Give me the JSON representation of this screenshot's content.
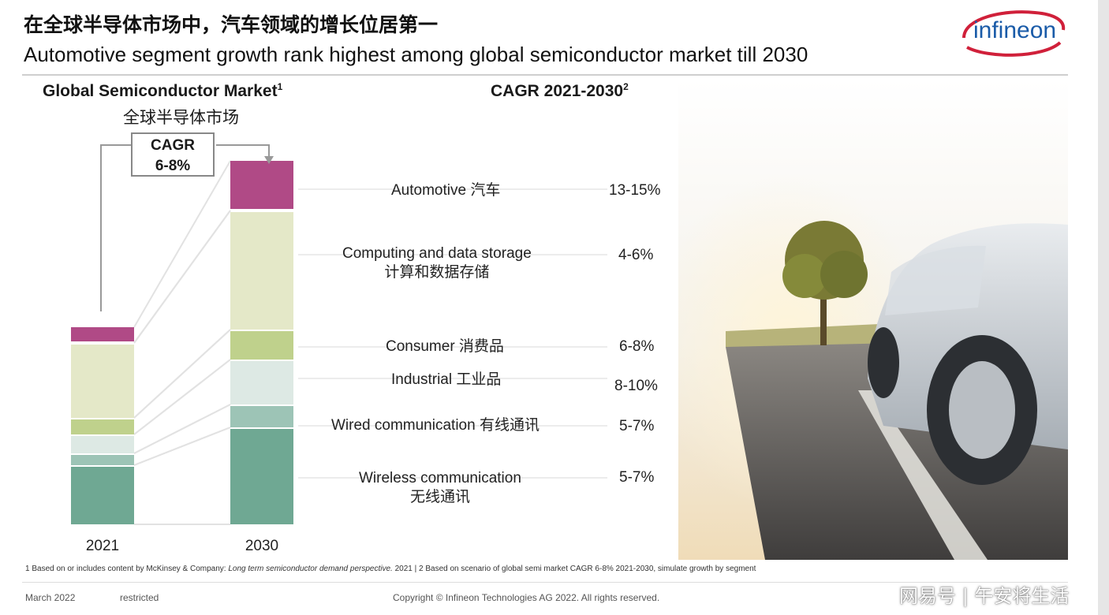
{
  "header": {
    "title_cn": "在全球半导体市场中，汽车领域的增长位居第一",
    "title_en": "Automotive segment growth rank highest among global semiconductor market till 2030",
    "logo_text": "infineon"
  },
  "chart": {
    "title_en": "Global Semiconductor Market",
    "title_sup": "1",
    "title_cn": "全球半导体市场",
    "cagr_title": "CAGR 2021-2030",
    "cagr_sup": "2",
    "total_cagr_label": "CAGR",
    "total_cagr_value": "6-8%"
  },
  "chart_data": {
    "type": "bar",
    "stacked": true,
    "categories": [
      "2021",
      "2030"
    ],
    "series": [
      {
        "name": "Wireless communication 无线通讯",
        "cagr": "5-7%",
        "color": "#6fa893",
        "values": [
          7.5,
          12.3
        ]
      },
      {
        "name": "Wired communication 有线通讯",
        "cagr": "5-7%",
        "color": "#9dc4b6",
        "values": [
          1.5,
          2.9
        ]
      },
      {
        "name": "Industrial 工业品",
        "cagr": "8-10%",
        "color": "#dde9e4",
        "values": [
          2.4,
          5.7
        ]
      },
      {
        "name": "Consumer 消费品",
        "cagr": "6-8%",
        "color": "#bfd18c",
        "values": [
          2.1,
          3.8
        ]
      },
      {
        "name": "Computing and data storage 计算和数据存储",
        "cagr": "4-6%",
        "color": "#e4e8c8",
        "values": [
          9.5,
          15.1
        ]
      },
      {
        "name": "Automotive 汽车",
        "cagr": "13-15%",
        "color": "#b04a86",
        "values": [
          2.0,
          6.3
        ]
      }
    ],
    "ylim": [
      0,
      46
    ]
  },
  "segments": [
    {
      "label": "Automotive 汽车",
      "value": "13-15%"
    },
    {
      "label": "Computing and data storage",
      "label2": "计算和数据存储",
      "value": "4-6%"
    },
    {
      "label": "Consumer 消费品",
      "value": "6-8%"
    },
    {
      "label": "Industrial 工业品",
      "value": "8-10%"
    },
    {
      "label": "Wired communication 有线通讯",
      "value": "5-7%"
    },
    {
      "label": "Wireless communication",
      "label2": "无线通讯",
      "value": "5-7%"
    }
  ],
  "footer": {
    "note_1": "1 Based on or includes content by McKinsey & Company: ",
    "note_1_italic": "Long term semiconductor demand perspective.",
    "note_2": " 2021 | 2 Based on scenario of global semi market CAGR 6-8% 2021-2030, simulate growth by segment",
    "date": "March 2022",
    "classification": "restricted",
    "copyright": "Copyright © Infineon Technologies AG 2022. All rights reserved.",
    "watermark": "网易号 | 午安将生活"
  }
}
